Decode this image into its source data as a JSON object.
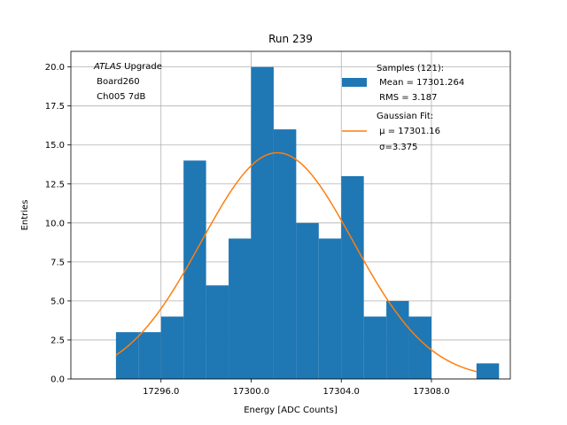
{
  "chart_data": {
    "type": "bar",
    "title": "Run 239",
    "xlabel": "Energy [ADC Counts]",
    "ylabel": "Entries",
    "xlim": [
      17292.0,
      17311.5
    ],
    "ylim": [
      0,
      21
    ],
    "grid": true,
    "x_ticks": [
      17296.0,
      17300.0,
      17304.0,
      17308.0
    ],
    "x_tick_labels": [
      "17296.0",
      "17300.0",
      "17304.0",
      "17308.0"
    ],
    "y_ticks": [
      0.0,
      2.5,
      5.0,
      7.5,
      10.0,
      12.5,
      15.0,
      17.5,
      20.0
    ],
    "y_tick_labels": [
      "0.0",
      "2.5",
      "5.0",
      "7.5",
      "10.0",
      "12.5",
      "15.0",
      "17.5",
      "20.0"
    ],
    "histogram": {
      "name": "Samples (121):",
      "color": "#1f77b4",
      "bin_edges": [
        17294.0,
        17295.0,
        17296.0,
        17297.0,
        17298.0,
        17299.0,
        17300.0,
        17301.0,
        17302.0,
        17303.0,
        17304.0,
        17305.0,
        17306.0,
        17307.0,
        17308.0,
        17309.0,
        17310.0,
        17311.0
      ],
      "counts": [
        3,
        3,
        4,
        14,
        6,
        9,
        20,
        16,
        10,
        9,
        13,
        4,
        5,
        4,
        0,
        0,
        1
      ]
    },
    "fit": {
      "name": "Gaussian Fit:",
      "color": "#ff7f0e",
      "mu": 17301.16,
      "sigma": 3.375,
      "amplitude": 14.5,
      "x_range": [
        17294.0,
        17310.0
      ]
    },
    "legend": {
      "position": "top-right",
      "entries": [
        {
          "lines": [
            "Samples (121):",
            " Mean = 17301.264",
            " RMS = 3.187"
          ]
        },
        {
          "lines": [
            "Gaussian Fit:",
            " μ = 17301.16",
            " σ=3.375"
          ]
        }
      ]
    },
    "annotation": {
      "position": "top-left",
      "italic_word": "ATLAS",
      "lines": [
        " Upgrade",
        " Board260",
        " Ch005 7dB"
      ]
    }
  }
}
